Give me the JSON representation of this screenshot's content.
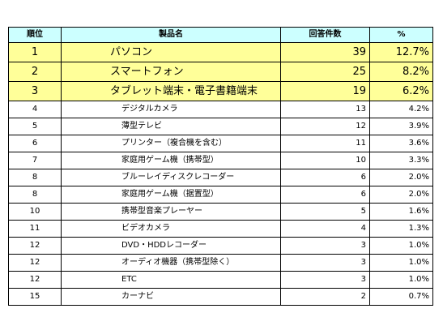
{
  "table": {
    "headers": {
      "rank": "順位",
      "product": "製品名",
      "count": "回答件数",
      "percent": "%"
    },
    "rows": [
      {
        "rank": "1",
        "product": "パソコン",
        "count": "39",
        "percent": "12.7%",
        "highlight": true
      },
      {
        "rank": "2",
        "product": "スマートフォン",
        "count": "25",
        "percent": "8.2%",
        "highlight": true
      },
      {
        "rank": "3",
        "product": "タブレット端末・電子書籍端末",
        "count": "19",
        "percent": "6.2%",
        "highlight": true
      },
      {
        "rank": "4",
        "product": "デジタルカメラ",
        "count": "13",
        "percent": "4.2%",
        "highlight": false
      },
      {
        "rank": "5",
        "product": "薄型テレビ",
        "count": "12",
        "percent": "3.9%",
        "highlight": false
      },
      {
        "rank": "6",
        "product": "プリンター（複合機を含む）",
        "count": "11",
        "percent": "3.6%",
        "highlight": false
      },
      {
        "rank": "7",
        "product": "家庭用ゲーム機（携帯型）",
        "count": "10",
        "percent": "3.3%",
        "highlight": false
      },
      {
        "rank": "8",
        "product": "ブルーレイディスクレコーダー",
        "count": "6",
        "percent": "2.0%",
        "highlight": false
      },
      {
        "rank": "8",
        "product": "家庭用ゲーム機（据置型）",
        "count": "6",
        "percent": "2.0%",
        "highlight": false
      },
      {
        "rank": "10",
        "product": "携帯型音楽プレーヤー",
        "count": "5",
        "percent": "1.6%",
        "highlight": false
      },
      {
        "rank": "11",
        "product": "ビデオカメラ",
        "count": "4",
        "percent": "1.3%",
        "highlight": false
      },
      {
        "rank": "12",
        "product": "DVD・HDDレコーダー",
        "count": "3",
        "percent": "1.0%",
        "highlight": false
      },
      {
        "rank": "12",
        "product": "オーディオ機器（携帯型除く）",
        "count": "3",
        "percent": "1.0%",
        "highlight": false
      },
      {
        "rank": "12",
        "product": "ETC",
        "count": "3",
        "percent": "1.0%",
        "highlight": false
      },
      {
        "rank": "15",
        "product": "カーナビ",
        "count": "2",
        "percent": "0.7%",
        "highlight": false
      }
    ]
  },
  "colors": {
    "header_bg": "#ccffff",
    "highlight_bg": "#ffff99",
    "border": "#000000"
  }
}
